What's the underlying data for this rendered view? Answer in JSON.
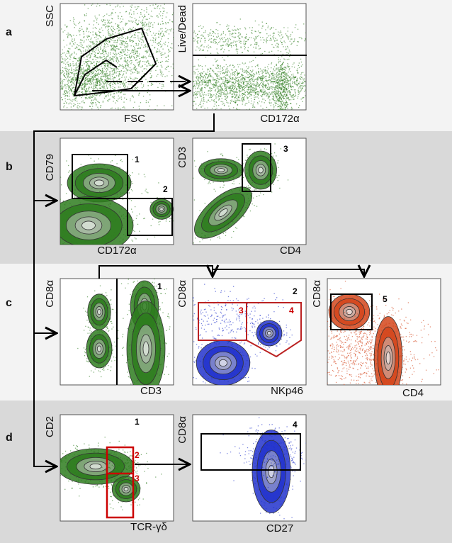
{
  "rows": [
    "a",
    "b",
    "c",
    "d"
  ],
  "panels": [
    {
      "y_label": "SSC",
      "x_label": "FSC",
      "gates": []
    },
    {
      "y_label": "Live/Dead",
      "x_label": "CD172α",
      "gates": []
    },
    {
      "y_label": "CD79",
      "x_label": "CD172α",
      "gates": [
        "1",
        "2"
      ]
    },
    {
      "y_label": "CD3",
      "x_label": "CD4",
      "gates": [
        "3"
      ]
    },
    {
      "y_label": "CD8α",
      "x_label": "CD3",
      "gates": [
        "1"
      ]
    },
    {
      "y_label": "CD8α",
      "x_label": "NKp46",
      "gates": [
        "2",
        "3",
        "4"
      ]
    },
    {
      "y_label": "CD8α",
      "x_label": "CD4",
      "gates": [
        "5"
      ]
    },
    {
      "y_label": "CD2",
      "x_label": "TCR-γδ",
      "gates": [
        "1",
        "2",
        "3"
      ]
    },
    {
      "y_label": "CD8α",
      "x_label": "CD27",
      "gates": [
        "4"
      ]
    }
  ]
}
